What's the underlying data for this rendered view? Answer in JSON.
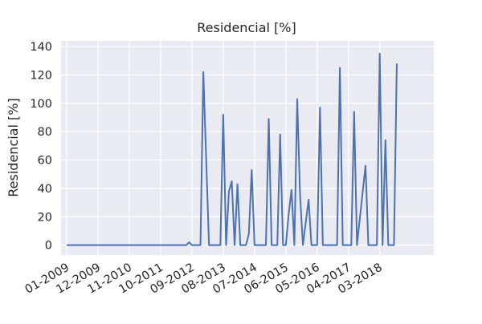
{
  "chart_data": {
    "type": "line",
    "title": "Residencial [%]",
    "xlabel": "",
    "ylabel": "Residencial [%]",
    "ylim": [
      -7,
      144
    ],
    "yticks": [
      0,
      20,
      40,
      60,
      80,
      100,
      120,
      140
    ],
    "xlim": [
      "2008-11",
      "2019-10"
    ],
    "xticks": [
      {
        "date": "2009-01",
        "label": "01-2009"
      },
      {
        "date": "2009-12",
        "label": "12-2009"
      },
      {
        "date": "2010-11",
        "label": "11-2010"
      },
      {
        "date": "2011-10",
        "label": "10-2011"
      },
      {
        "date": "2012-09",
        "label": "09-2012"
      },
      {
        "date": "2013-08",
        "label": "08-2013"
      },
      {
        "date": "2014-07",
        "label": "07-2014"
      },
      {
        "date": "2015-06",
        "label": "06-2015"
      },
      {
        "date": "2016-05",
        "label": "05-2016"
      },
      {
        "date": "2017-04",
        "label": "04-2017"
      },
      {
        "date": "2018-03",
        "label": "03-2018"
      }
    ],
    "grid": true,
    "colors": {
      "background": "#eaeaf2",
      "grid": "#ffffff",
      "line": "#4c72b0"
    },
    "series": [
      {
        "x": [
          "2009-01",
          "2012-07",
          "2012-08",
          "2012-09",
          "2012-11",
          "2012-12",
          "2013-01",
          "2013-03",
          "2013-07",
          "2013-08",
          "2013-09",
          "2013-10",
          "2013-11",
          "2013-12",
          "2014-01",
          "2014-02",
          "2014-04",
          "2014-05",
          "2014-06",
          "2014-07",
          "2014-08",
          "2014-11",
          "2014-12",
          "2015-01",
          "2015-03",
          "2015-04",
          "2015-05",
          "2015-06",
          "2015-07",
          "2015-08",
          "2015-09",
          "2015-10",
          "2015-11",
          "2015-12",
          "2016-02",
          "2016-03",
          "2016-04",
          "2016-05",
          "2016-06",
          "2016-07",
          "2016-09",
          "2016-10",
          "2016-12",
          "2017-01",
          "2017-02",
          "2017-04",
          "2017-05",
          "2017-06",
          "2017-07",
          "2017-10",
          "2017-11",
          "2017-12",
          "2018-02",
          "2018-03",
          "2018-04",
          "2018-05",
          "2018-06",
          "2018-08",
          "2018-09"
        ],
        "y": [
          0,
          0,
          2,
          0,
          0,
          0,
          122,
          0,
          0,
          92,
          0,
          38,
          45,
          0,
          43,
          0,
          0,
          8,
          53,
          0,
          0,
          0,
          89,
          0,
          0,
          78,
          0,
          0,
          22,
          39,
          0,
          103,
          35,
          0,
          32,
          0,
          0,
          0,
          97,
          0,
          0,
          0,
          0,
          125,
          0,
          0,
          0,
          94,
          0,
          56,
          0,
          0,
          0,
          135,
          0,
          74,
          0,
          0,
          128
        ]
      }
    ]
  }
}
